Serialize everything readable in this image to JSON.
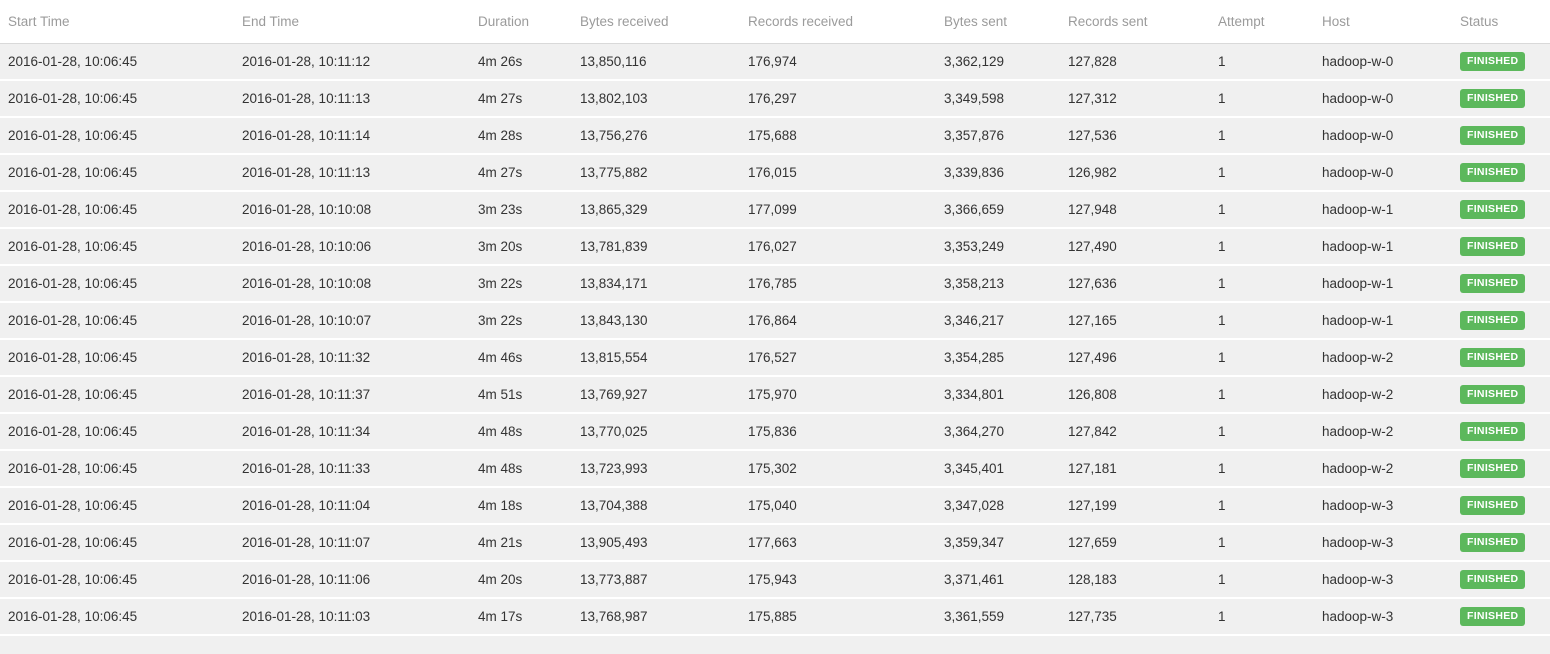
{
  "table": {
    "status_color": "#5cb85c",
    "columns": [
      {
        "key": "start_time",
        "label": "Start Time"
      },
      {
        "key": "end_time",
        "label": "End Time"
      },
      {
        "key": "duration",
        "label": "Duration"
      },
      {
        "key": "bytes_received",
        "label": "Bytes received"
      },
      {
        "key": "records_received",
        "label": "Records received"
      },
      {
        "key": "bytes_sent",
        "label": "Bytes sent"
      },
      {
        "key": "records_sent",
        "label": "Records sent"
      },
      {
        "key": "attempt",
        "label": "Attempt"
      },
      {
        "key": "host",
        "label": "Host"
      },
      {
        "key": "status",
        "label": "Status"
      }
    ],
    "rows": [
      {
        "start_time": "2016-01-28, 10:06:45",
        "end_time": "2016-01-28, 10:11:12",
        "duration": "4m 26s",
        "bytes_received": "13,850,116",
        "records_received": "176,974",
        "bytes_sent": "3,362,129",
        "records_sent": "127,828",
        "attempt": "1",
        "host": "hadoop-w-0",
        "status": "FINISHED"
      },
      {
        "start_time": "2016-01-28, 10:06:45",
        "end_time": "2016-01-28, 10:11:13",
        "duration": "4m 27s",
        "bytes_received": "13,802,103",
        "records_received": "176,297",
        "bytes_sent": "3,349,598",
        "records_sent": "127,312",
        "attempt": "1",
        "host": "hadoop-w-0",
        "status": "FINISHED"
      },
      {
        "start_time": "2016-01-28, 10:06:45",
        "end_time": "2016-01-28, 10:11:14",
        "duration": "4m 28s",
        "bytes_received": "13,756,276",
        "records_received": "175,688",
        "bytes_sent": "3,357,876",
        "records_sent": "127,536",
        "attempt": "1",
        "host": "hadoop-w-0",
        "status": "FINISHED"
      },
      {
        "start_time": "2016-01-28, 10:06:45",
        "end_time": "2016-01-28, 10:11:13",
        "duration": "4m 27s",
        "bytes_received": "13,775,882",
        "records_received": "176,015",
        "bytes_sent": "3,339,836",
        "records_sent": "126,982",
        "attempt": "1",
        "host": "hadoop-w-0",
        "status": "FINISHED"
      },
      {
        "start_time": "2016-01-28, 10:06:45",
        "end_time": "2016-01-28, 10:10:08",
        "duration": "3m 23s",
        "bytes_received": "13,865,329",
        "records_received": "177,099",
        "bytes_sent": "3,366,659",
        "records_sent": "127,948",
        "attempt": "1",
        "host": "hadoop-w-1",
        "status": "FINISHED"
      },
      {
        "start_time": "2016-01-28, 10:06:45",
        "end_time": "2016-01-28, 10:10:06",
        "duration": "3m 20s",
        "bytes_received": "13,781,839",
        "records_received": "176,027",
        "bytes_sent": "3,353,249",
        "records_sent": "127,490",
        "attempt": "1",
        "host": "hadoop-w-1",
        "status": "FINISHED"
      },
      {
        "start_time": "2016-01-28, 10:06:45",
        "end_time": "2016-01-28, 10:10:08",
        "duration": "3m 22s",
        "bytes_received": "13,834,171",
        "records_received": "176,785",
        "bytes_sent": "3,358,213",
        "records_sent": "127,636",
        "attempt": "1",
        "host": "hadoop-w-1",
        "status": "FINISHED"
      },
      {
        "start_time": "2016-01-28, 10:06:45",
        "end_time": "2016-01-28, 10:10:07",
        "duration": "3m 22s",
        "bytes_received": "13,843,130",
        "records_received": "176,864",
        "bytes_sent": "3,346,217",
        "records_sent": "127,165",
        "attempt": "1",
        "host": "hadoop-w-1",
        "status": "FINISHED"
      },
      {
        "start_time": "2016-01-28, 10:06:45",
        "end_time": "2016-01-28, 10:11:32",
        "duration": "4m 46s",
        "bytes_received": "13,815,554",
        "records_received": "176,527",
        "bytes_sent": "3,354,285",
        "records_sent": "127,496",
        "attempt": "1",
        "host": "hadoop-w-2",
        "status": "FINISHED"
      },
      {
        "start_time": "2016-01-28, 10:06:45",
        "end_time": "2016-01-28, 10:11:37",
        "duration": "4m 51s",
        "bytes_received": "13,769,927",
        "records_received": "175,970",
        "bytes_sent": "3,334,801",
        "records_sent": "126,808",
        "attempt": "1",
        "host": "hadoop-w-2",
        "status": "FINISHED"
      },
      {
        "start_time": "2016-01-28, 10:06:45",
        "end_time": "2016-01-28, 10:11:34",
        "duration": "4m 48s",
        "bytes_received": "13,770,025",
        "records_received": "175,836",
        "bytes_sent": "3,364,270",
        "records_sent": "127,842",
        "attempt": "1",
        "host": "hadoop-w-2",
        "status": "FINISHED"
      },
      {
        "start_time": "2016-01-28, 10:06:45",
        "end_time": "2016-01-28, 10:11:33",
        "duration": "4m 48s",
        "bytes_received": "13,723,993",
        "records_received": "175,302",
        "bytes_sent": "3,345,401",
        "records_sent": "127,181",
        "attempt": "1",
        "host": "hadoop-w-2",
        "status": "FINISHED"
      },
      {
        "start_time": "2016-01-28, 10:06:45",
        "end_time": "2016-01-28, 10:11:04",
        "duration": "4m 18s",
        "bytes_received": "13,704,388",
        "records_received": "175,040",
        "bytes_sent": "3,347,028",
        "records_sent": "127,199",
        "attempt": "1",
        "host": "hadoop-w-3",
        "status": "FINISHED"
      },
      {
        "start_time": "2016-01-28, 10:06:45",
        "end_time": "2016-01-28, 10:11:07",
        "duration": "4m 21s",
        "bytes_received": "13,905,493",
        "records_received": "177,663",
        "bytes_sent": "3,359,347",
        "records_sent": "127,659",
        "attempt": "1",
        "host": "hadoop-w-3",
        "status": "FINISHED"
      },
      {
        "start_time": "2016-01-28, 10:06:45",
        "end_time": "2016-01-28, 10:11:06",
        "duration": "4m 20s",
        "bytes_received": "13,773,887",
        "records_received": "175,943",
        "bytes_sent": "3,371,461",
        "records_sent": "128,183",
        "attempt": "1",
        "host": "hadoop-w-3",
        "status": "FINISHED"
      },
      {
        "start_time": "2016-01-28, 10:06:45",
        "end_time": "2016-01-28, 10:11:03",
        "duration": "4m 17s",
        "bytes_received": "13,768,987",
        "records_received": "175,885",
        "bytes_sent": "3,361,559",
        "records_sent": "127,735",
        "attempt": "1",
        "host": "hadoop-w-3",
        "status": "FINISHED"
      }
    ]
  }
}
